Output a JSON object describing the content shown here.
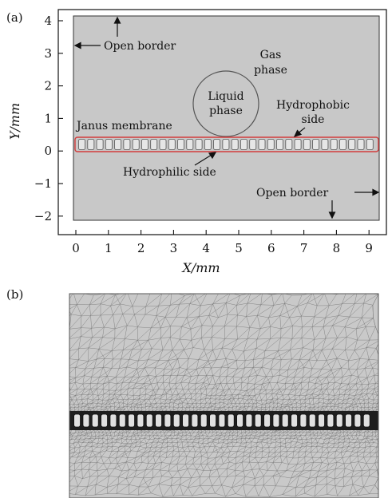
{
  "panel_a": {
    "label": "(a)",
    "x_axis": {
      "label": "X/mm",
      "ticks": [
        "0",
        "1",
        "2",
        "3",
        "4",
        "5",
        "6",
        "7",
        "8",
        "9"
      ]
    },
    "y_axis": {
      "label": "Y/mm",
      "ticks": [
        "4",
        "3",
        "2",
        "1",
        "0",
        "−1",
        "−2"
      ]
    },
    "annotations": {
      "open_border_top": "Open border",
      "open_border_bottom": "Open border",
      "gas_phase_1": "Gas",
      "gas_phase_2": "phase",
      "liquid_phase_1": "Liquid",
      "liquid_phase_2": "phase",
      "hydrophobic_1": "Hydrophobic",
      "hydrophobic_2": "side",
      "janus_membrane": "Janus membrane",
      "hydrophilic": "Hydrophilic side"
    },
    "membrane_pore_count": 33,
    "colors": {
      "domain": "#c8c8c8",
      "membrane_outline": "#d23c3c",
      "pore": "#e6e6e6"
    }
  },
  "panel_b": {
    "label": "(b)",
    "membrane_pore_count": 33,
    "colors": {
      "mesh_bg": "#c9c9c9",
      "mesh_line": "#6e6e6e",
      "pore": "#e0e0e0",
      "band": "#1e1e1e"
    }
  }
}
